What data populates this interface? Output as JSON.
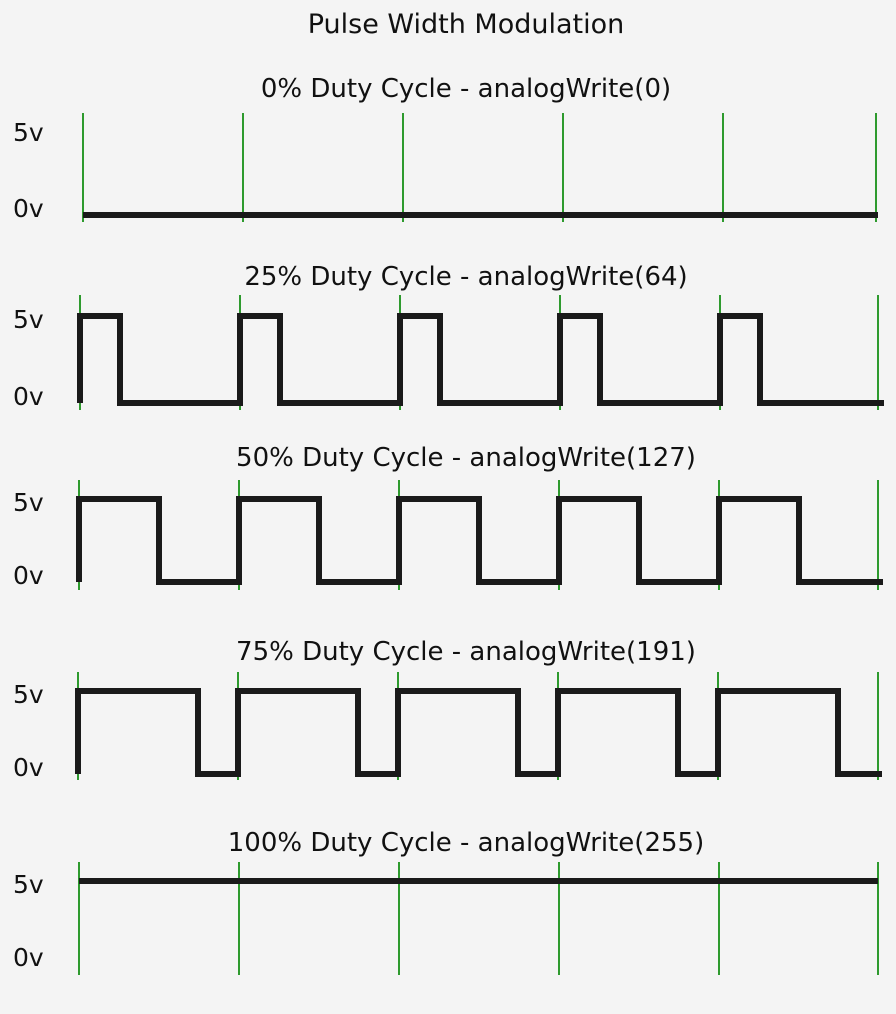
{
  "title": "Pulse Width Modulation",
  "voltage_high_label": "5v",
  "voltage_low_label": "0v",
  "colors": {
    "background": "#f4f4f4",
    "waveform": "#1a1a1a",
    "period_marker": "#2e9a2e",
    "text": "#111111"
  },
  "chart_data": {
    "type": "line",
    "periods_shown": 5,
    "ylim": [
      0,
      5
    ],
    "panels": [
      {
        "label": "0% Duty Cycle - analogWrite(0)",
        "duty_percent": 0,
        "analog_write_value": 0
      },
      {
        "label": "25% Duty Cycle - analogWrite(64)",
        "duty_percent": 25,
        "analog_write_value": 64
      },
      {
        "label": "50% Duty Cycle - analogWrite(127)",
        "duty_percent": 50,
        "analog_write_value": 127
      },
      {
        "label": "75% Duty Cycle - analogWrite(191)",
        "duty_percent": 75,
        "analog_write_value": 191
      },
      {
        "label": "100% Duty Cycle - analogWrite(255)",
        "duty_percent": 100,
        "analog_write_value": 255
      }
    ]
  }
}
